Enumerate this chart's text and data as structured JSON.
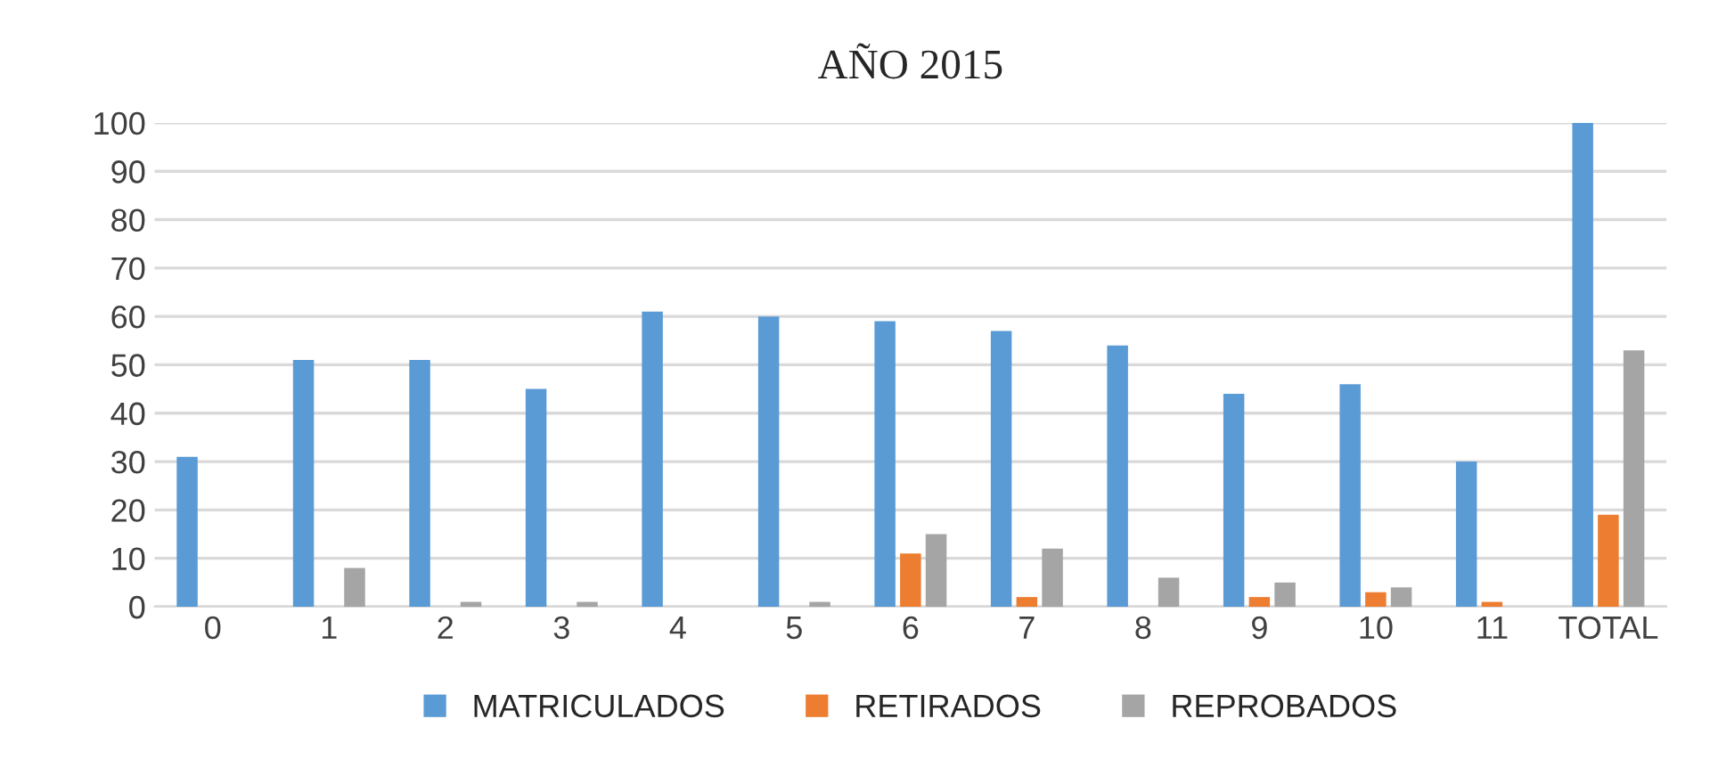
{
  "chart_data": {
    "type": "bar",
    "title": "AÑO 2015",
    "categories": [
      "0",
      "1",
      "2",
      "3",
      "4",
      "5",
      "6",
      "7",
      "8",
      "9",
      "10",
      "11",
      "TOTAL"
    ],
    "series": [
      {
        "name": "MATRICULADOS",
        "color": "#5b9bd5",
        "values": [
          31,
          51,
          51,
          45,
          61,
          60,
          59,
          57,
          54,
          44,
          46,
          30,
          100
        ]
      },
      {
        "name": "RETIRADOS",
        "color": "#ed7d31",
        "values": [
          0,
          0,
          0,
          0,
          0,
          0,
          11,
          2,
          0,
          2,
          3,
          1,
          19
        ]
      },
      {
        "name": "REPROBADOS",
        "color": "#a5a5a5",
        "values": [
          0,
          8,
          1,
          1,
          0,
          1,
          15,
          12,
          6,
          5,
          4,
          0,
          53
        ]
      }
    ],
    "ylim": [
      0,
      100
    ],
    "yticks": [
      0,
      10,
      20,
      30,
      40,
      50,
      60,
      70,
      80,
      90,
      100
    ],
    "grid": "y",
    "legend": "bottom"
  }
}
